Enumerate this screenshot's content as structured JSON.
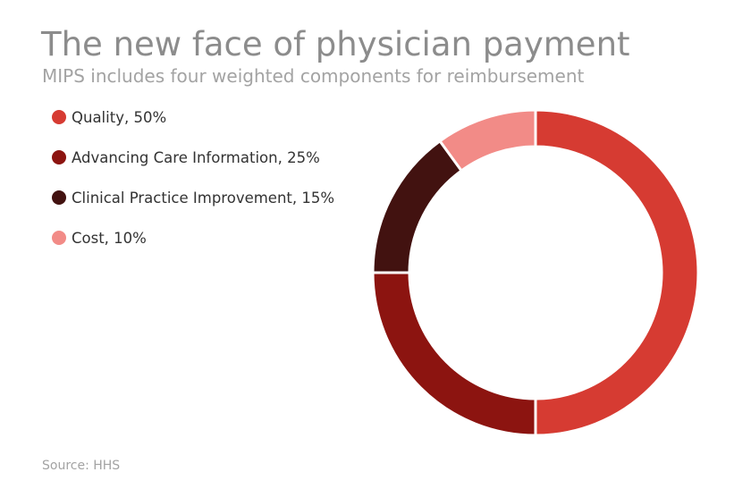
{
  "chart_data": {
    "type": "pie",
    "title": "The new face of physician payment",
    "subtitle": "MIPS includes four weighted components for reimbursement",
    "source": "Source: HHS",
    "slices": [
      {
        "label": "Quality",
        "value": 50,
        "display": "Quality, 50%",
        "color": "#d63b32"
      },
      {
        "label": "Advancing Care Information",
        "value": 25,
        "display": "Advancing Care Information, 25%",
        "color": "#8c1410"
      },
      {
        "label": "Clinical Practice Improvement",
        "value": 15,
        "display": "Clinical Practice Improvement, 15%",
        "color": "#421210"
      },
      {
        "label": "Cost",
        "value": 10,
        "display": "Cost, 10%",
        "color": "#f28b87"
      }
    ],
    "legend_position": "top-left",
    "style": "donut"
  }
}
